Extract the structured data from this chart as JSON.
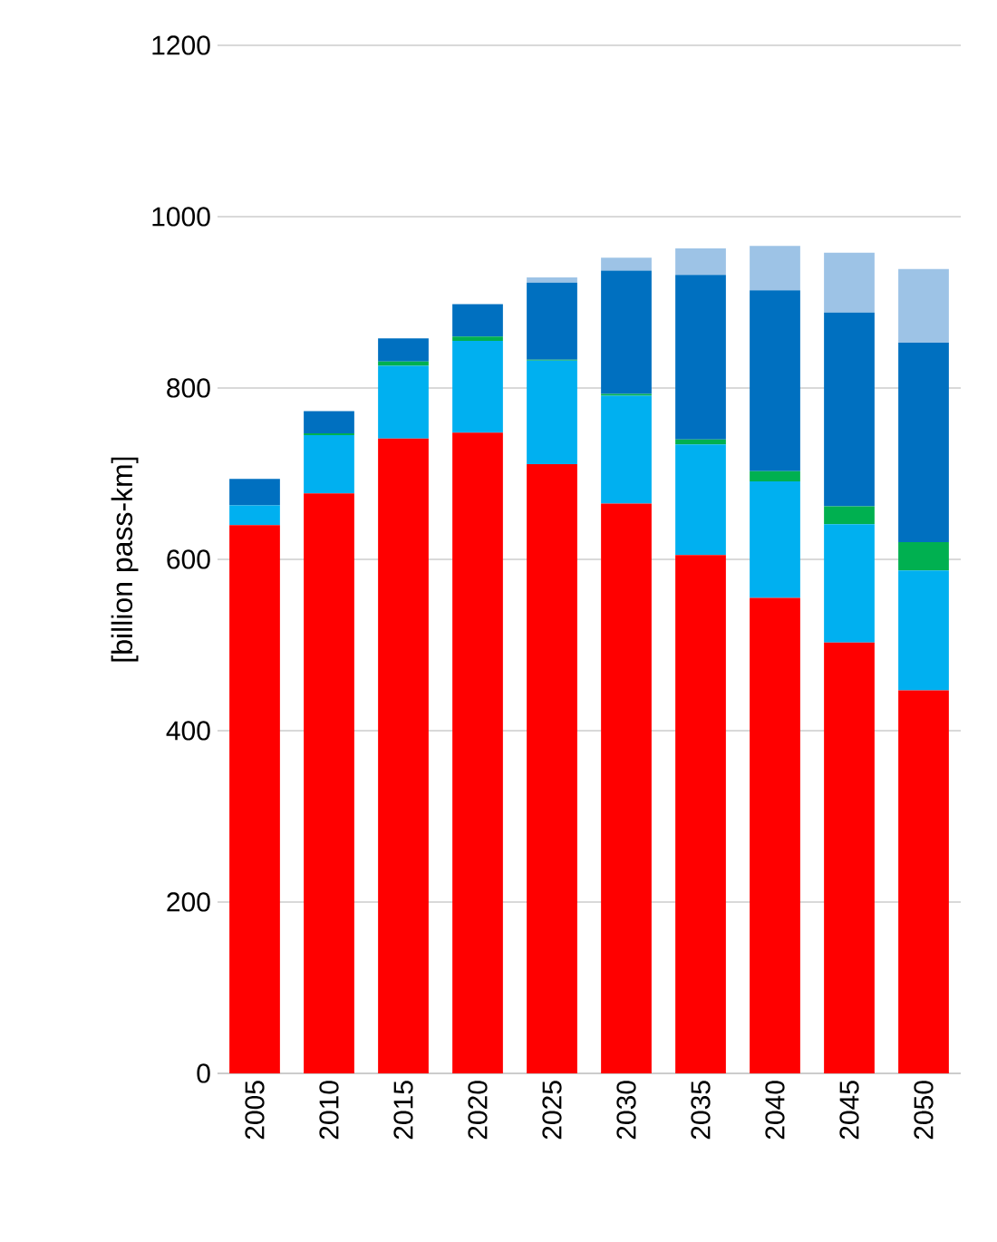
{
  "chart_data": {
    "type": "bar",
    "stacked": true,
    "ylabel": "[billion pass-km]",
    "categories": [
      "2005",
      "2010",
      "2015",
      "2020",
      "2025",
      "2030",
      "2035",
      "2040",
      "2045",
      "2050"
    ],
    "ylim": [
      0,
      1200
    ],
    "yticks": [
      0,
      200,
      400,
      600,
      800,
      1000,
      1200
    ],
    "grid": "y",
    "series": [
      {
        "color": "#ff0000",
        "values": [
          640,
          677,
          741,
          748,
          711,
          665,
          605,
          555,
          503,
          447
        ]
      },
      {
        "color": "#00b0f0",
        "values": [
          23,
          68,
          85,
          107,
          121,
          126,
          129,
          136,
          138,
          140
        ]
      },
      {
        "color": "#00b050",
        "values": [
          null,
          2,
          5,
          5,
          1,
          2,
          6,
          12,
          21,
          33
        ]
      },
      {
        "color": "#0070c0",
        "values": [
          31,
          26,
          27,
          38,
          90,
          144,
          192,
          211,
          226,
          233
        ]
      },
      {
        "color": "#9dc3e6",
        "values": [
          0,
          0,
          0,
          0,
          6,
          15,
          31,
          52,
          70,
          86
        ]
      }
    ]
  }
}
